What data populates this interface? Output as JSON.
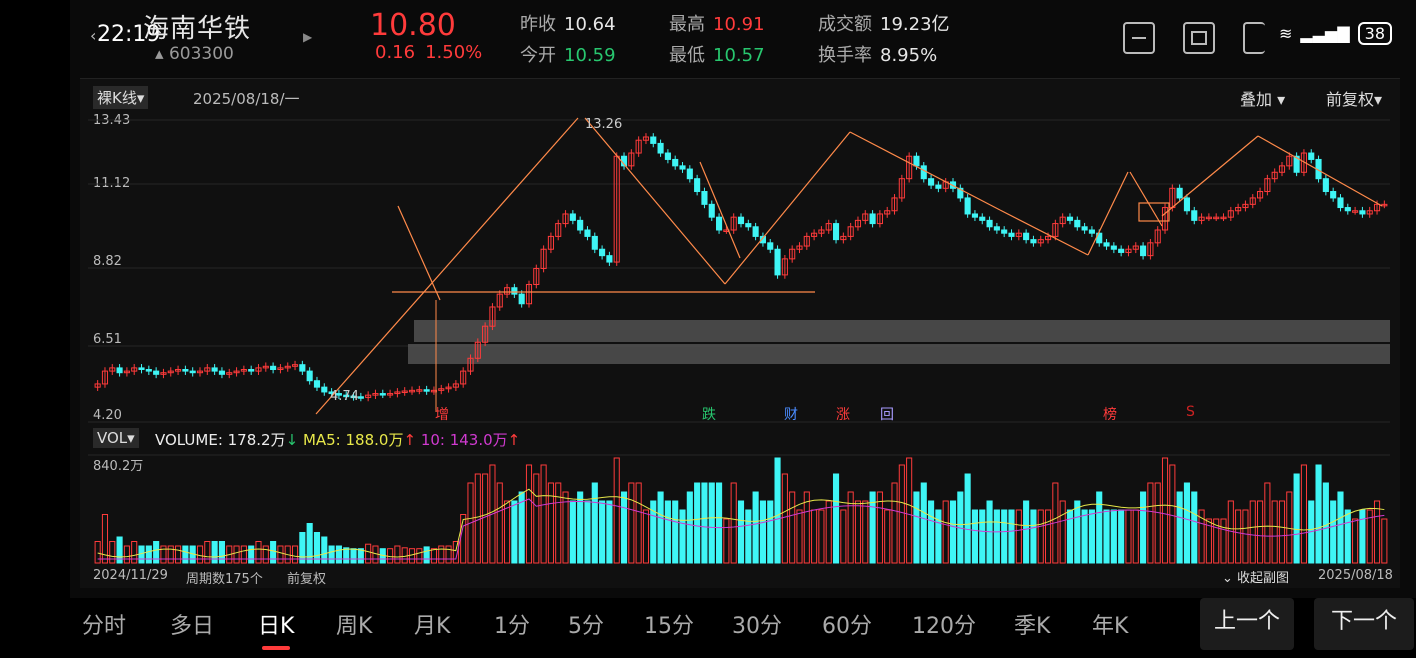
{
  "status": {
    "time": "22:19",
    "battery": "38"
  },
  "stock": {
    "name": "海南华铁",
    "code": "603300",
    "price": "10.80",
    "change": "0.16",
    "change_pct": "1.50%"
  },
  "quote": {
    "prev_close_label": "昨收",
    "prev_close": "10.64",
    "open_label": "今开",
    "open": "10.59",
    "high_label": "最高",
    "high": "10.91",
    "low_label": "最低",
    "low": "10.57",
    "amount_label": "成交额",
    "amount": "19.23亿",
    "turnover_label": "换手率",
    "turnover": "8.95%"
  },
  "chart_toolbar": {
    "kline_type": "裸K线",
    "date": "2025/08/18/一",
    "overlay": "叠加",
    "adjust": "前复权"
  },
  "y_axis": [
    "13.43",
    "11.12",
    "8.82",
    "6.51",
    "4.20"
  ],
  "annotations": {
    "peak": "13.26",
    "low": "4.74"
  },
  "markers": [
    {
      "text": "增",
      "color": "#ff3b3b"
    },
    {
      "text": "跌",
      "color": "#28c76f"
    },
    {
      "text": "财",
      "color": "#4a8cff"
    },
    {
      "text": "涨",
      "color": "#ff3b3b"
    },
    {
      "text": "回",
      "color": "#a89bff"
    },
    {
      "text": "榜",
      "color": "#ff3b3b"
    },
    {
      "text": "S",
      "color": "#cc2222"
    }
  ],
  "volume": {
    "selector": "VOL",
    "volume_label": "VOLUME: 178.2万",
    "ma5_label": "MA5: 188.0万",
    "ma10_label": "10: 143.0万",
    "max": "840.2万"
  },
  "footer": {
    "start_date": "2024/11/29",
    "period_count": "周期数175个",
    "adjust": "前复权",
    "collapse": "收起副图",
    "end_date": "2025/08/18"
  },
  "tabs": [
    "分时",
    "多日",
    "日K",
    "周K",
    "月K",
    "1分",
    "5分",
    "15分",
    "30分",
    "60分",
    "120分",
    "季K",
    "年K"
  ],
  "active_tab": "日K",
  "nav": {
    "prev": "上一个",
    "next": "下一个"
  },
  "colors": {
    "up": "#ff3b3b",
    "down": "#3ff5f5",
    "ma5": "#e8e84a",
    "ma10": "#d03ad0",
    "trendline": "#ff8a4a"
  },
  "chart_data": {
    "type": "candlestick",
    "title": "",
    "ylim": [
      4.2,
      13.43
    ],
    "closes": [
      5.2,
      5.6,
      5.7,
      5.55,
      5.6,
      5.7,
      5.65,
      5.6,
      5.5,
      5.55,
      5.6,
      5.65,
      5.6,
      5.55,
      5.6,
      5.7,
      5.6,
      5.5,
      5.55,
      5.6,
      5.65,
      5.6,
      5.7,
      5.75,
      5.65,
      5.7,
      5.75,
      5.8,
      5.6,
      5.3,
      5.1,
      4.95,
      4.9,
      4.85,
      4.82,
      4.8,
      4.78,
      4.85,
      4.9,
      4.88,
      4.9,
      4.95,
      4.98,
      5.0,
      5.02,
      4.98,
      5.0,
      5.05,
      5.1,
      5.2,
      5.6,
      6.0,
      6.5,
      7.0,
      7.6,
      8.0,
      8.2,
      8.0,
      7.7,
      8.3,
      8.8,
      9.4,
      9.8,
      10.2,
      10.5,
      10.3,
      10.0,
      9.8,
      9.4,
      9.2,
      9.0,
      12.3,
      12.0,
      12.4,
      12.8,
      12.9,
      12.7,
      12.4,
      12.2,
      12.0,
      11.9,
      11.6,
      11.2,
      10.8,
      10.4,
      10.0,
      10.0,
      10.4,
      10.2,
      10.1,
      9.8,
      9.6,
      9.4,
      8.6,
      9.1,
      9.4,
      9.5,
      9.8,
      9.9,
      10.0,
      10.2,
      9.7,
      9.8,
      10.1,
      10.3,
      10.5,
      10.2,
      10.5,
      10.6,
      11.0,
      11.6,
      12.3,
      12.0,
      11.6,
      11.4,
      11.3,
      11.5,
      11.3,
      11.0,
      10.5,
      10.4,
      10.3,
      10.1,
      10.0,
      9.9,
      9.8,
      9.9,
      9.7,
      9.6,
      9.7,
      9.8,
      10.2,
      10.4,
      10.3,
      10.1,
      10.0,
      9.9,
      9.6,
      9.5,
      9.4,
      9.3,
      9.4,
      9.5,
      9.2,
      9.6,
      10.0,
      10.7,
      11.3,
      11.0,
      10.6,
      10.3,
      10.4,
      10.4,
      10.4,
      10.4,
      10.6,
      10.7,
      10.8,
      11.0,
      11.2,
      11.6,
      11.8,
      12.0,
      12.3,
      11.8,
      12.4,
      12.2,
      11.6,
      11.2,
      11.0,
      10.7,
      10.6,
      10.6,
      10.5,
      10.6,
      10.8,
      10.8
    ]
  }
}
